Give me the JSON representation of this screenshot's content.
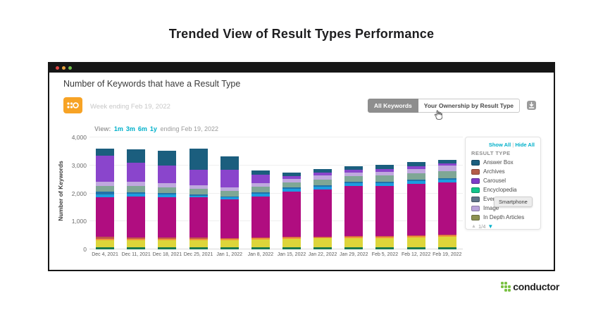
{
  "page": {
    "title": "Trended View of Result Types Performance"
  },
  "window": {
    "traffic_lights": [
      "close",
      "minimize",
      "zoom"
    ],
    "chart_header": "Number of Keywords that have a Result Type",
    "source_icon": "conductor-dots-icon",
    "source_icon_color": "#f7a325",
    "week_label": "Week ending Feb 19, 2022",
    "toolbar": {
      "all_keywords_label": "All Keywords",
      "ownership_label": "Your Ownership by Result Type",
      "download_icon": "export-download-icon"
    },
    "view_bar": {
      "prefix": "View:",
      "ranges": [
        "1m",
        "3m",
        "6m",
        "1y"
      ],
      "suffix": "ending Feb 19, 2022",
      "link_color": "#00b0ca"
    },
    "legend": {
      "show_all": "Show All",
      "separator": "|",
      "hide_all": "Hide All",
      "title": "RESULT TYPE",
      "items": [
        {
          "label": "Answer Box",
          "color": "#1b5e7e"
        },
        {
          "label": "Archives",
          "color": "#b45c4a"
        },
        {
          "label": "Carousel",
          "color": "#7d3cc8"
        },
        {
          "label": "Encyclopedia",
          "color": "#12c48b"
        },
        {
          "label": "Events",
          "color": "#5f7389"
        },
        {
          "label": "Image",
          "color": "#b9a3da"
        },
        {
          "label": "In Depth Articles",
          "color": "#8d9150"
        }
      ],
      "pagination": {
        "up": "▲",
        "page": "1/4",
        "down": "▼"
      }
    },
    "tooltip": "Smartphone"
  },
  "footer": {
    "brand": "conductor",
    "brand_color": "#7ac143"
  },
  "chart_data": {
    "type": "bar",
    "stacked": true,
    "title": "Number of Keywords that have a Result Type",
    "xlabel": "",
    "ylabel": "Number of Keywords",
    "ylim": [
      0,
      4000
    ],
    "ytick_step": 1000,
    "grid": true,
    "legend_position": "right",
    "categories": [
      "Dec 4, 2021",
      "Dec 11, 2021",
      "Dec 18, 2021",
      "Dec 25, 2021",
      "Jan 1, 2022",
      "Jan 8, 2022",
      "Jan 15, 2022",
      "Jan 22, 2022",
      "Jan 29, 2022",
      "Feb 5, 2022",
      "Feb 12, 2022",
      "Feb 19, 2022"
    ],
    "series": [
      {
        "name": "dark-green (bottom)",
        "color": "#1b7a52",
        "values": [
          75,
          80,
          70,
          70,
          70,
          80,
          80,
          80,
          80,
          80,
          80,
          80
        ]
      },
      {
        "name": "yellow",
        "color": "#ddd53a",
        "values": [
          250,
          250,
          250,
          250,
          265,
          285,
          300,
          315,
          315,
          330,
          350,
          365
        ]
      },
      {
        "name": "orange",
        "color": "#f0913c",
        "values": [
          65,
          60,
          60,
          58,
          50,
          40,
          40,
          40,
          50,
          50,
          50,
          50
        ]
      },
      {
        "name": "rust",
        "color": "#bf5449",
        "values": [
          55,
          40,
          40,
          40,
          30,
          30,
          30,
          30,
          30,
          30,
          30,
          40
        ]
      },
      {
        "name": "magenta",
        "color": "#b00d80",
        "values": [
          1415,
          1450,
          1450,
          1435,
          1365,
          1450,
          1615,
          1685,
          1785,
          1785,
          1835,
          1850
        ]
      },
      {
        "name": "bright-blue",
        "color": "#1c9de0",
        "values": [
          115,
          100,
          85,
          65,
          85,
          100,
          100,
          100,
          100,
          100,
          100,
          115
        ]
      },
      {
        "name": "steel-blue",
        "color": "#2272a8",
        "values": [
          85,
          65,
          50,
          50,
          20,
          50,
          50,
          50,
          50,
          50,
          50,
          50
        ]
      },
      {
        "name": "sage-green",
        "color": "#7fa795",
        "values": [
          215,
          215,
          215,
          200,
          200,
          200,
          185,
          200,
          200,
          215,
          215,
          250
        ]
      },
      {
        "name": "lavender",
        "color": "#bfa8de",
        "values": [
          150,
          165,
          150,
          135,
          135,
          135,
          115,
          135,
          135,
          135,
          150,
          200
        ]
      },
      {
        "name": "purple",
        "color": "#8a45cc",
        "values": [
          935,
          665,
          615,
          535,
          615,
          300,
          115,
          115,
          100,
          100,
          100,
          65
        ]
      },
      {
        "name": "dark-teal (top)",
        "color": "#1b5e7e",
        "values": [
          235,
          485,
          550,
          750,
          500,
          150,
          115,
          115,
          135,
          135,
          150,
          135
        ]
      }
    ]
  }
}
